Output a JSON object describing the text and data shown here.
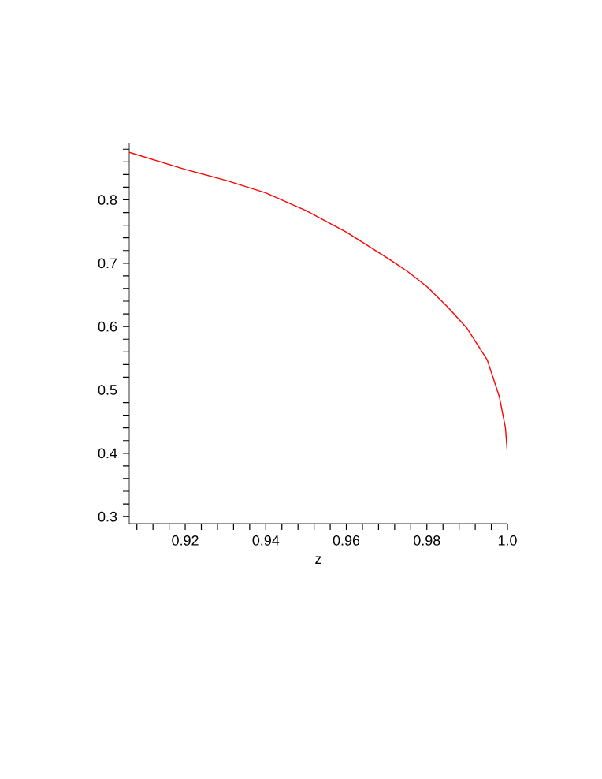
{
  "chart_data": {
    "type": "line",
    "xlabel": "z",
    "x": [
      0.9061,
      0.92,
      0.93,
      0.94,
      0.95,
      0.96,
      0.97,
      0.975,
      0.98,
      0.985,
      0.99,
      0.995,
      0.998,
      0.9995,
      1.0,
      1.0
    ],
    "series": [
      {
        "color": "#ff0000",
        "values": [
          0.875,
          0.848,
          0.831,
          0.811,
          0.783,
          0.749,
          0.709,
          0.688,
          0.663,
          0.632,
          0.597,
          0.547,
          0.489,
          0.44,
          0.399,
          0.3
        ]
      }
    ],
    "xlim": [
      0.9061,
      1.0
    ],
    "ylim": [
      0.289,
      0.889
    ],
    "xticks": [
      {
        "value": 0.908,
        "label": null
      },
      {
        "value": 0.912,
        "label": null
      },
      {
        "value": 0.916,
        "label": null
      },
      0.92,
      {
        "value": 0.924,
        "label": null
      },
      {
        "value": 0.928,
        "label": null
      },
      {
        "value": 0.932,
        "label": null
      },
      {
        "value": 0.936,
        "label": null
      },
      0.94,
      {
        "value": 0.944,
        "label": null
      },
      {
        "value": 0.948,
        "label": null
      },
      {
        "value": 0.952,
        "label": null
      },
      {
        "value": 0.956,
        "label": null
      },
      0.96,
      {
        "value": 0.964,
        "label": null
      },
      {
        "value": 0.968,
        "label": null
      },
      {
        "value": 0.972,
        "label": null
      },
      {
        "value": 0.976,
        "label": null
      },
      0.98,
      {
        "value": 0.984,
        "label": null
      },
      {
        "value": 0.988,
        "label": null
      },
      {
        "value": 0.992,
        "label": null
      },
      {
        "value": 0.996,
        "label": null
      },
      {
        "value": 1.0,
        "label": "1.0"
      }
    ],
    "yticks": [
      0.3,
      {
        "value": 0.32,
        "label": null
      },
      {
        "value": 0.34,
        "label": null
      },
      {
        "value": 0.36,
        "label": null
      },
      {
        "value": 0.38,
        "label": null
      },
      0.4,
      {
        "value": 0.42,
        "label": null
      },
      {
        "value": 0.44,
        "label": null
      },
      {
        "value": 0.46,
        "label": null
      },
      {
        "value": 0.48,
        "label": null
      },
      0.5,
      {
        "value": 0.52,
        "label": null
      },
      {
        "value": 0.54,
        "label": null
      },
      {
        "value": 0.56,
        "label": null
      },
      {
        "value": 0.58,
        "label": null
      },
      0.6,
      {
        "value": 0.62,
        "label": null
      },
      {
        "value": 0.64,
        "label": null
      },
      {
        "value": 0.66,
        "label": null
      },
      {
        "value": 0.68,
        "label": null
      },
      0.7,
      {
        "value": 0.72,
        "label": null
      },
      {
        "value": 0.74,
        "label": null
      },
      {
        "value": 0.76,
        "label": null
      },
      {
        "value": 0.78,
        "label": null
      },
      0.8,
      {
        "value": 0.82,
        "label": null
      },
      {
        "value": 0.84,
        "label": null
      },
      {
        "value": 0.86,
        "label": null
      },
      {
        "value": 0.88,
        "label": null
      }
    ],
    "marker": "none",
    "line_style": "solid"
  }
}
